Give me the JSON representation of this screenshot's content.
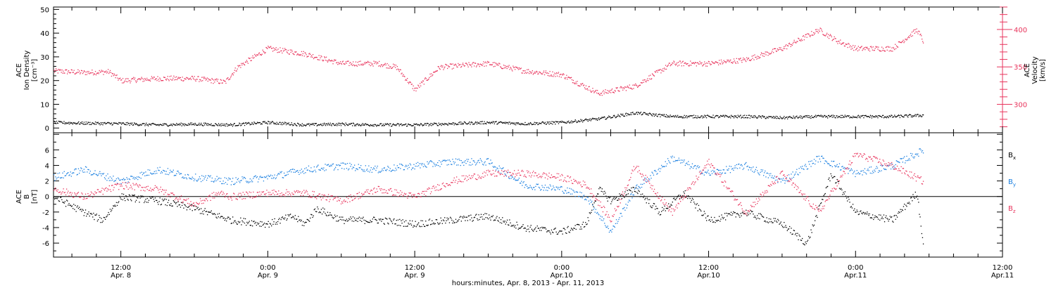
{
  "colors": {
    "axis": "#000000",
    "density": "#000000",
    "velocity": "#e8345c",
    "bx": "#000000",
    "by": "#1a7fe0",
    "bz": "#e8345c"
  },
  "x_axis": {
    "ticks": [
      {
        "time": "12:00",
        "date": "Apr. 8"
      },
      {
        "time": "0:00",
        "date": "Apr. 9"
      },
      {
        "time": "12:00",
        "date": "Apr. 9"
      },
      {
        "time": "0:00",
        "date": "Apr.10"
      },
      {
        "time": "12:00",
        "date": "Apr.10"
      },
      {
        "time": "0:00",
        "date": "Apr.11"
      },
      {
        "time": "12:00",
        "date": "Apr.11"
      }
    ],
    "title": "hours:minutes, Apr.  8, 2013 - Apr. 11, 2013"
  },
  "chart_data": [
    {
      "type": "scatter",
      "panel": "top",
      "x_range": [
        "2013-04-08 06:30",
        "2013-04-11 12:00"
      ],
      "left_axis": {
        "label_lines": [
          "ACE",
          "Ion Density",
          "[cm⁻³]"
        ],
        "ylim": [
          -2,
          51
        ],
        "ticks": [
          0,
          10,
          20,
          30,
          40,
          50
        ]
      },
      "right_axis": {
        "label_lines": [
          "ACE",
          "Velocity",
          "[km/s]"
        ],
        "ylim": [
          262,
          430
        ],
        "ticks": [
          300,
          350,
          400
        ],
        "color": "#e8345c"
      },
      "series": [
        {
          "axis": "left",
          "color": "#000000",
          "points": [
            [
              "2013-04-08 06:30",
              2.5
            ],
            [
              "2013-04-08 09:00",
              2.2
            ],
            [
              "2013-04-08 12:00",
              2.0
            ],
            [
              "2013-04-08 15:00",
              1.5
            ],
            [
              "2013-04-08 18:00",
              1.8
            ],
            [
              "2013-04-08 21:00",
              1.5
            ],
            [
              "2013-04-09 00:00",
              2.5
            ],
            [
              "2013-04-09 03:00",
              1.5
            ],
            [
              "2013-04-09 06:00",
              1.8
            ],
            [
              "2013-04-09 09:00",
              1.5
            ],
            [
              "2013-04-09 12:00",
              1.5
            ],
            [
              "2013-04-09 15:00",
              2.0
            ],
            [
              "2013-04-09 18:00",
              2.5
            ],
            [
              "2013-04-09 21:00",
              2.0
            ],
            [
              "2013-04-10 00:00",
              2.5
            ],
            [
              "2013-04-10 03:00",
              4.0
            ],
            [
              "2013-04-10 06:00",
              6.5
            ],
            [
              "2013-04-10 09:00",
              5.0
            ],
            [
              "2013-04-10 12:00",
              5.0
            ],
            [
              "2013-04-10 15:00",
              5.0
            ],
            [
              "2013-04-10 18:00",
              4.5
            ],
            [
              "2013-04-10 21:00",
              5.0
            ],
            [
              "2013-04-11 00:00",
              5.0
            ],
            [
              "2013-04-11 03:00",
              5.0
            ],
            [
              "2013-04-11 05:30",
              5.5
            ]
          ]
        },
        {
          "axis": "right",
          "color": "#e8345c",
          "points": [
            [
              "2013-04-08 06:30",
              345
            ],
            [
              "2013-04-08 09:00",
              343
            ],
            [
              "2013-04-08 11:00",
              344
            ],
            [
              "2013-04-08 12:00",
              332
            ],
            [
              "2013-04-08 15:00",
              335
            ],
            [
              "2013-04-08 18:00",
              335
            ],
            [
              "2013-04-08 20:30",
              330
            ],
            [
              "2013-04-08 21:30",
              350
            ],
            [
              "2013-04-09 00:00",
              375
            ],
            [
              "2013-04-09 03:00",
              368
            ],
            [
              "2013-04-09 06:00",
              355
            ],
            [
              "2013-04-09 09:00",
              355
            ],
            [
              "2013-04-09 10:30",
              350
            ],
            [
              "2013-04-09 12:00",
              320
            ],
            [
              "2013-04-09 14:00",
              350
            ],
            [
              "2013-04-09 18:00",
              355
            ],
            [
              "2013-04-09 21:00",
              345
            ],
            [
              "2013-04-10 00:00",
              340
            ],
            [
              "2013-04-10 03:00",
              315
            ],
            [
              "2013-04-10 06:00",
              325
            ],
            [
              "2013-04-10 09:00",
              355
            ],
            [
              "2013-04-10 12:00",
              355
            ],
            [
              "2013-04-10 15:00",
              360
            ],
            [
              "2013-04-10 18:00",
              375
            ],
            [
              "2013-04-10 21:00",
              400
            ],
            [
              "2013-04-10 22:30",
              385
            ],
            [
              "2013-04-11 00:00",
              375
            ],
            [
              "2013-04-11 03:00",
              375
            ],
            [
              "2013-04-11 05:00",
              400
            ],
            [
              "2013-04-11 05:30",
              385
            ]
          ]
        }
      ]
    },
    {
      "type": "scatter",
      "panel": "bottom",
      "x_range": [
        "2013-04-08 06:30",
        "2013-04-11 12:00"
      ],
      "axis_label_lines": [
        "ACE",
        "B",
        "[nT]"
      ],
      "ylim": [
        -7.8,
        8.2
      ],
      "ticks": [
        -6,
        -4,
        -2,
        0,
        2,
        4,
        6
      ],
      "zero_line": true,
      "series": [
        {
          "name": "Bx",
          "color": "#000000",
          "points": [
            [
              "2013-04-08 06:30",
              0.0
            ],
            [
              "2013-04-08 09:00",
              -2.0
            ],
            [
              "2013-04-08 10:30",
              -3.0
            ],
            [
              "2013-04-08 12:00",
              0.0
            ],
            [
              "2013-04-08 15:00",
              -0.5
            ],
            [
              "2013-04-08 18:00",
              -1.5
            ],
            [
              "2013-04-08 21:00",
              -3.0
            ],
            [
              "2013-04-09 00:00",
              -3.5
            ],
            [
              "2013-04-09 02:00",
              -2.5
            ],
            [
              "2013-04-09 03:00",
              -3.5
            ],
            [
              "2013-04-09 04:00",
              -1.5
            ],
            [
              "2013-04-09 06:00",
              -3.0
            ],
            [
              "2013-04-09 09:00",
              -3.0
            ],
            [
              "2013-04-09 12:00",
              -3.5
            ],
            [
              "2013-04-09 15:00",
              -3.0
            ],
            [
              "2013-04-09 18:00",
              -2.5
            ],
            [
              "2013-04-09 21:00",
              -4.0
            ],
            [
              "2013-04-10 00:00",
              -4.5
            ],
            [
              "2013-04-10 02:00",
              -3.5
            ],
            [
              "2013-04-10 03:00",
              1.0
            ],
            [
              "2013-04-10 04:00",
              -0.5
            ],
            [
              "2013-04-10 06:00",
              1.0
            ],
            [
              "2013-04-10 08:00",
              -2.0
            ],
            [
              "2013-04-10 10:00",
              0.5
            ],
            [
              "2013-04-10 12:00",
              -3.0
            ],
            [
              "2013-04-10 15:00",
              -2.0
            ],
            [
              "2013-04-10 18:00",
              -3.5
            ],
            [
              "2013-04-10 20:00",
              -6.0
            ],
            [
              "2013-04-10 22:00",
              3.0
            ],
            [
              "2013-04-11 00:00",
              -2.0
            ],
            [
              "2013-04-11 03:00",
              -3.0
            ],
            [
              "2013-04-11 05:00",
              0.5
            ],
            [
              "2013-04-11 05:30",
              -6.0
            ]
          ]
        },
        {
          "name": "By",
          "color": "#1a7fe0",
          "points": [
            [
              "2013-04-08 06:30",
              2.5
            ],
            [
              "2013-04-08 09:00",
              3.5
            ],
            [
              "2013-04-08 12:00",
              2.0
            ],
            [
              "2013-04-08 15:00",
              3.5
            ],
            [
              "2013-04-08 18:00",
              2.5
            ],
            [
              "2013-04-08 21:00",
              2.0
            ],
            [
              "2013-04-09 00:00",
              2.5
            ],
            [
              "2013-04-09 03:00",
              3.5
            ],
            [
              "2013-04-09 06:00",
              4.0
            ],
            [
              "2013-04-09 09:00",
              3.5
            ],
            [
              "2013-04-09 12:00",
              4.0
            ],
            [
              "2013-04-09 15:00",
              4.5
            ],
            [
              "2013-04-09 18:00",
              4.5
            ],
            [
              "2013-04-09 21:00",
              1.5
            ],
            [
              "2013-04-10 00:00",
              1.0
            ],
            [
              "2013-04-10 02:00",
              0.0
            ],
            [
              "2013-04-10 04:00",
              -4.5
            ],
            [
              "2013-04-10 06:00",
              1.0
            ],
            [
              "2013-04-10 09:00",
              5.0
            ],
            [
              "2013-04-10 12:00",
              3.0
            ],
            [
              "2013-04-10 15:00",
              4.0
            ],
            [
              "2013-04-10 18:00",
              2.0
            ],
            [
              "2013-04-10 21:00",
              5.0
            ],
            [
              "2013-04-11 00:00",
              3.0
            ],
            [
              "2013-04-11 03:00",
              4.0
            ],
            [
              "2013-04-11 05:30",
              6.0
            ]
          ]
        },
        {
          "name": "Bz",
          "color": "#e8345c",
          "points": [
            [
              "2013-04-08 06:30",
              1.0
            ],
            [
              "2013-04-08 09:00",
              0.0
            ],
            [
              "2013-04-08 12:00",
              1.5
            ],
            [
              "2013-04-08 15:00",
              1.0
            ],
            [
              "2013-04-08 18:00",
              -1.0
            ],
            [
              "2013-04-08 20:00",
              0.5
            ],
            [
              "2013-04-08 21:00",
              0.0
            ],
            [
              "2013-04-09 00:00",
              0.5
            ],
            [
              "2013-04-09 03:00",
              0.5
            ],
            [
              "2013-04-09 06:00",
              -0.5
            ],
            [
              "2013-04-09 09:00",
              1.0
            ],
            [
              "2013-04-09 12:00",
              0.0
            ],
            [
              "2013-04-09 15:00",
              2.0
            ],
            [
              "2013-04-09 18:00",
              3.0
            ],
            [
              "2013-04-09 21:00",
              3.0
            ],
            [
              "2013-04-10 00:00",
              2.5
            ],
            [
              "2013-04-10 02:00",
              1.5
            ],
            [
              "2013-04-10 04:00",
              -3.0
            ],
            [
              "2013-04-10 06:00",
              4.0
            ],
            [
              "2013-04-10 09:00",
              -2.0
            ],
            [
              "2013-04-10 12:00",
              4.5
            ],
            [
              "2013-04-10 15:00",
              -2.0
            ],
            [
              "2013-04-10 18:00",
              3.0
            ],
            [
              "2013-04-10 21:00",
              -2.0
            ],
            [
              "2013-04-11 00:00",
              5.5
            ],
            [
              "2013-04-11 03:00",
              4.0
            ],
            [
              "2013-04-11 05:30",
              2.0
            ]
          ]
        }
      ]
    }
  ],
  "legend": {
    "bx_base": "B",
    "bx_sub": "x",
    "by_base": "B",
    "by_sub": "y",
    "bz_base": "B",
    "bz_sub": "z"
  }
}
